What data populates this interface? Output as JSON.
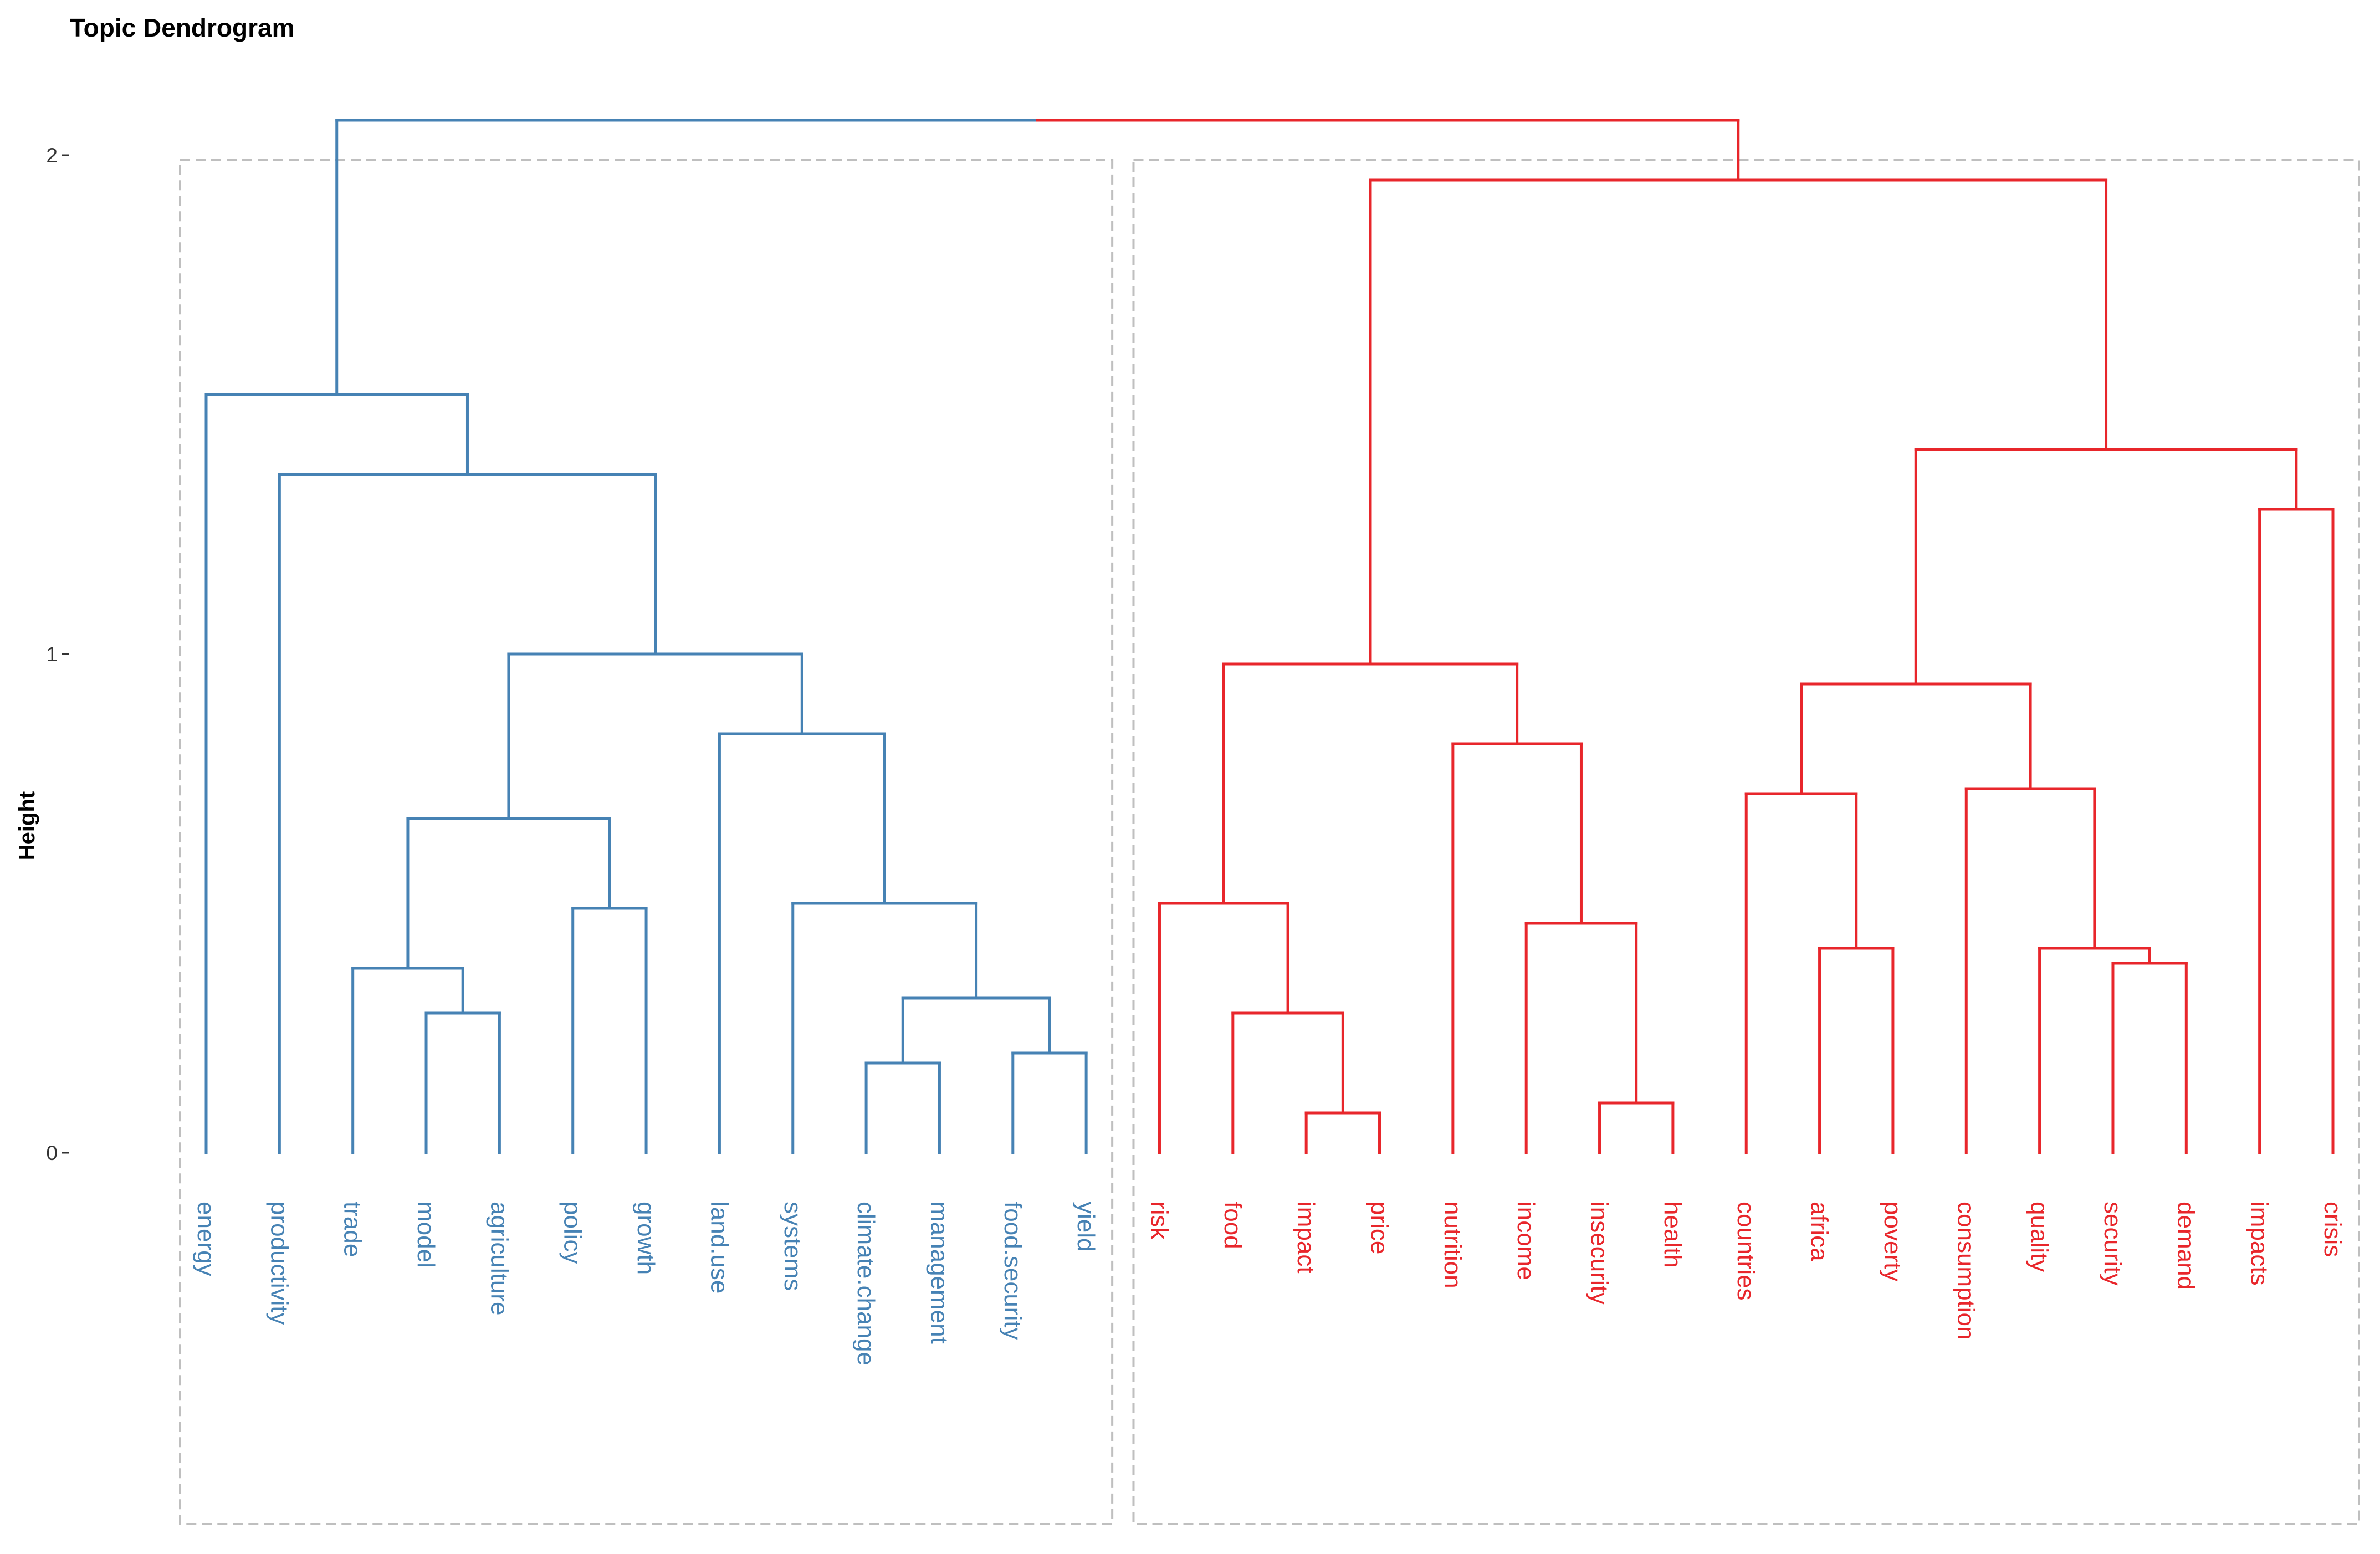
{
  "chart_data": {
    "type": "dendrogram",
    "title": "Topic Dendrogram",
    "ylabel": "Height",
    "ylim": [
      0,
      2.1
    ],
    "yticks": [
      0,
      1,
      2
    ],
    "ytick_labels": [
      "0",
      "1",
      "2"
    ],
    "colors": {
      "cluster_1": "#4682b4",
      "cluster_2": "#e8262b"
    },
    "leaves": [
      {
        "label": "energy",
        "cluster": 1
      },
      {
        "label": "productivity",
        "cluster": 1
      },
      {
        "label": "trade",
        "cluster": 1
      },
      {
        "label": "model",
        "cluster": 1
      },
      {
        "label": "agriculture",
        "cluster": 1
      },
      {
        "label": "policy",
        "cluster": 1
      },
      {
        "label": "growth",
        "cluster": 1
      },
      {
        "label": "land.use",
        "cluster": 1
      },
      {
        "label": "systems",
        "cluster": 1
      },
      {
        "label": "climate.change",
        "cluster": 1
      },
      {
        "label": "management",
        "cluster": 1
      },
      {
        "label": "food.security",
        "cluster": 1
      },
      {
        "label": "yield",
        "cluster": 1
      },
      {
        "label": "risk",
        "cluster": 2
      },
      {
        "label": "food",
        "cluster": 2
      },
      {
        "label": "impact",
        "cluster": 2
      },
      {
        "label": "price",
        "cluster": 2
      },
      {
        "label": "nutrition",
        "cluster": 2
      },
      {
        "label": "income",
        "cluster": 2
      },
      {
        "label": "insecurity",
        "cluster": 2
      },
      {
        "label": "health",
        "cluster": 2
      },
      {
        "label": "countries",
        "cluster": 2
      },
      {
        "label": "africa",
        "cluster": 2
      },
      {
        "label": "poverty",
        "cluster": 2
      },
      {
        "label": "consumption",
        "cluster": 2
      },
      {
        "label": "quality",
        "cluster": 2
      },
      {
        "label": "security",
        "cluster": 2
      },
      {
        "label": "demand",
        "cluster": 2
      },
      {
        "label": "impacts",
        "cluster": 2
      },
      {
        "label": "crisis",
        "cluster": 2
      }
    ],
    "tree": {
      "h": 2.07,
      "children": [
        {
          "h": 1.52,
          "cluster": 1,
          "children": [
            "energy",
            {
              "h": 1.36,
              "cluster": 1,
              "children": [
                "productivity",
                {
                  "h": 1.0,
                  "cluster": 1,
                  "children": [
                    {
                      "h": 0.67,
                      "cluster": 1,
                      "children": [
                        {
                          "h": 0.37,
                          "cluster": 1,
                          "children": [
                            "trade",
                            {
                              "h": 0.28,
                              "cluster": 1,
                              "children": [
                                "model",
                                "agriculture"
                              ]
                            }
                          ]
                        },
                        {
                          "h": 0.49,
                          "cluster": 1,
                          "children": [
                            "policy",
                            "growth"
                          ]
                        }
                      ]
                    },
                    {
                      "h": 0.84,
                      "cluster": 1,
                      "children": [
                        "land.use",
                        {
                          "h": 0.5,
                          "cluster": 1,
                          "children": [
                            "systems",
                            {
                              "h": 0.31,
                              "cluster": 1,
                              "children": [
                                {
                                  "h": 0.18,
                                  "cluster": 1,
                                  "children": [
                                    "climate.change",
                                    "management"
                                  ]
                                },
                                {
                                  "h": 0.2,
                                  "cluster": 1,
                                  "children": [
                                    "food.security",
                                    "yield"
                                  ]
                                }
                              ]
                            }
                          ]
                        }
                      ]
                    }
                  ]
                }
              ]
            }
          ]
        },
        {
          "h": 1.95,
          "cluster": 2,
          "children": [
            {
              "h": 0.98,
              "cluster": 2,
              "children": [
                {
                  "h": 0.5,
                  "cluster": 2,
                  "children": [
                    "risk",
                    {
                      "h": 0.28,
                      "cluster": 2,
                      "children": [
                        "food",
                        {
                          "h": 0.08,
                          "cluster": 2,
                          "children": [
                            "impact",
                            "price"
                          ]
                        }
                      ]
                    }
                  ]
                },
                {
                  "h": 0.82,
                  "cluster": 2,
                  "children": [
                    "nutrition",
                    {
                      "h": 0.46,
                      "cluster": 2,
                      "children": [
                        "income",
                        {
                          "h": 0.1,
                          "cluster": 2,
                          "children": [
                            "insecurity",
                            "health"
                          ]
                        }
                      ]
                    }
                  ]
                }
              ]
            },
            {
              "h": 1.41,
              "cluster": 2,
              "children": [
                {
                  "h": 0.94,
                  "cluster": 2,
                  "children": [
                    {
                      "h": 0.72,
                      "cluster": 2,
                      "children": [
                        "countries",
                        {
                          "h": 0.41,
                          "cluster": 2,
                          "children": [
                            "africa",
                            "poverty"
                          ]
                        }
                      ]
                    },
                    {
                      "h": 0.73,
                      "cluster": 2,
                      "children": [
                        "consumption",
                        {
                          "h": 0.41,
                          "cluster": 2,
                          "children": [
                            "quality",
                            {
                              "h": 0.38,
                              "cluster": 2,
                              "children": [
                                "security",
                                "demand"
                              ]
                            }
                          ]
                        }
                      ]
                    }
                  ]
                },
                {
                  "h": 1.29,
                  "cluster": 2,
                  "children": [
                    "impacts",
                    "crisis"
                  ]
                }
              ]
            }
          ]
        }
      ]
    }
  }
}
